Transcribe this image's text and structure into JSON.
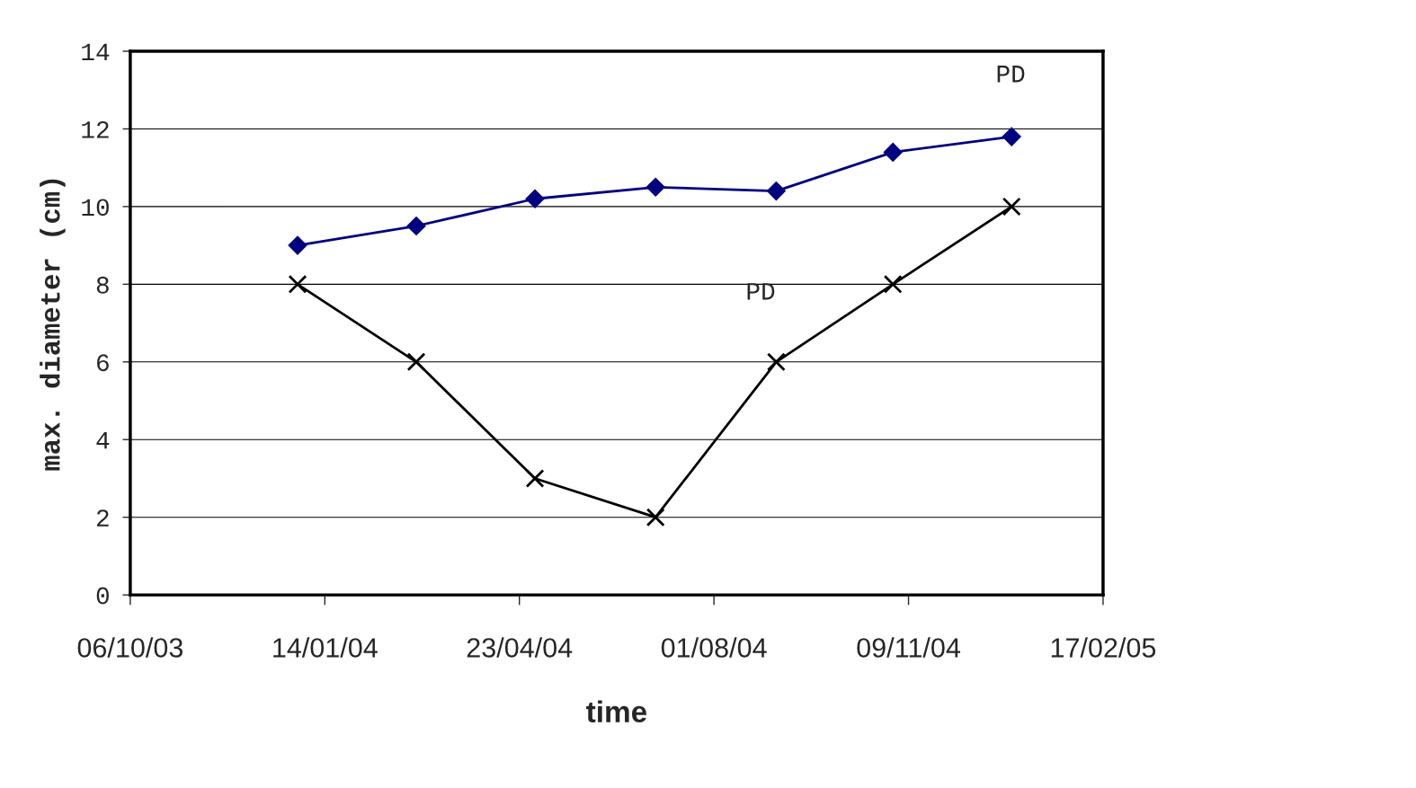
{
  "chart_data": {
    "type": "line",
    "xlabel": "time",
    "ylabel": "max. diameter (cm)",
    "x": [
      "2003-12-31",
      "2004-03-01",
      "2004-05-01",
      "2004-07-02",
      "2004-09-02",
      "2004-11-01",
      "2005-01-01"
    ],
    "series": [
      {
        "color": "#000080",
        "marker": "diamond",
        "values": [
          9.0,
          9.5,
          10.2,
          10.5,
          10.4,
          11.4,
          11.8
        ]
      },
      {
        "color": "#000000",
        "marker": "cross",
        "values": [
          8,
          6,
          3,
          2,
          6,
          8,
          10
        ]
      }
    ],
    "xlim": [
      "2003-10-06",
      "2005-02-17"
    ],
    "xticks": [
      {
        "value": "2003-10-06",
        "label": "06/10/03"
      },
      {
        "value": "2004-01-14",
        "label": "14/01/04"
      },
      {
        "value": "2004-04-23",
        "label": "23/04/04"
      },
      {
        "value": "2004-08-01",
        "label": "01/08/04"
      },
      {
        "value": "2004-11-09",
        "label": "09/11/04"
      },
      {
        "value": "2005-02-17",
        "label": "17/02/05"
      }
    ],
    "ylim": [
      0,
      14
    ],
    "yticks": [
      0,
      2,
      4,
      6,
      8,
      10,
      12,
      14
    ],
    "grid": "y",
    "legend": false,
    "line_style": "solid",
    "annotations": [
      "PD",
      "PD"
    ]
  }
}
